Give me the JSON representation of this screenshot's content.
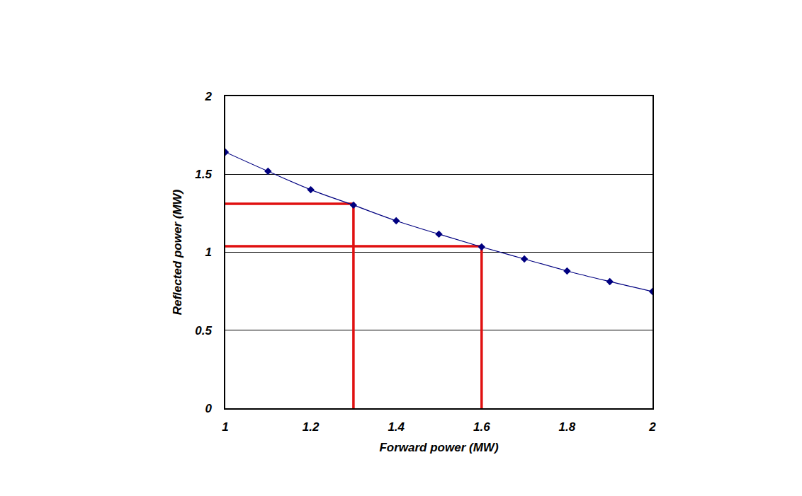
{
  "chart_data": {
    "type": "line",
    "x_label": "Forward power (MW)",
    "y_label": "Reflected power (MW)",
    "x": [
      1,
      1.1,
      1.2,
      1.3,
      1.4,
      1.5,
      1.6,
      1.7,
      1.8,
      1.9,
      2
    ],
    "values": [
      1.642,
      1.519,
      1.401,
      1.302,
      1.202,
      1.116,
      1.034,
      0.957,
      0.88,
      0.812,
      0.748
    ],
    "color": "#000080",
    "marker": "diamond",
    "line_style": "spline",
    "xlim": [
      1,
      2
    ],
    "xticks": [
      1,
      1.2,
      1.4,
      1.6,
      1.8,
      2
    ],
    "ylim": [
      0,
      2
    ],
    "yticks": [
      0,
      0.5,
      1,
      1.5,
      2
    ],
    "grid": "y",
    "guides": [
      {
        "x": 1.3,
        "y": 1.311,
        "color": "#e01010"
      },
      {
        "x": 1.6,
        "y": 1.039,
        "color": "#e01010"
      }
    ]
  }
}
